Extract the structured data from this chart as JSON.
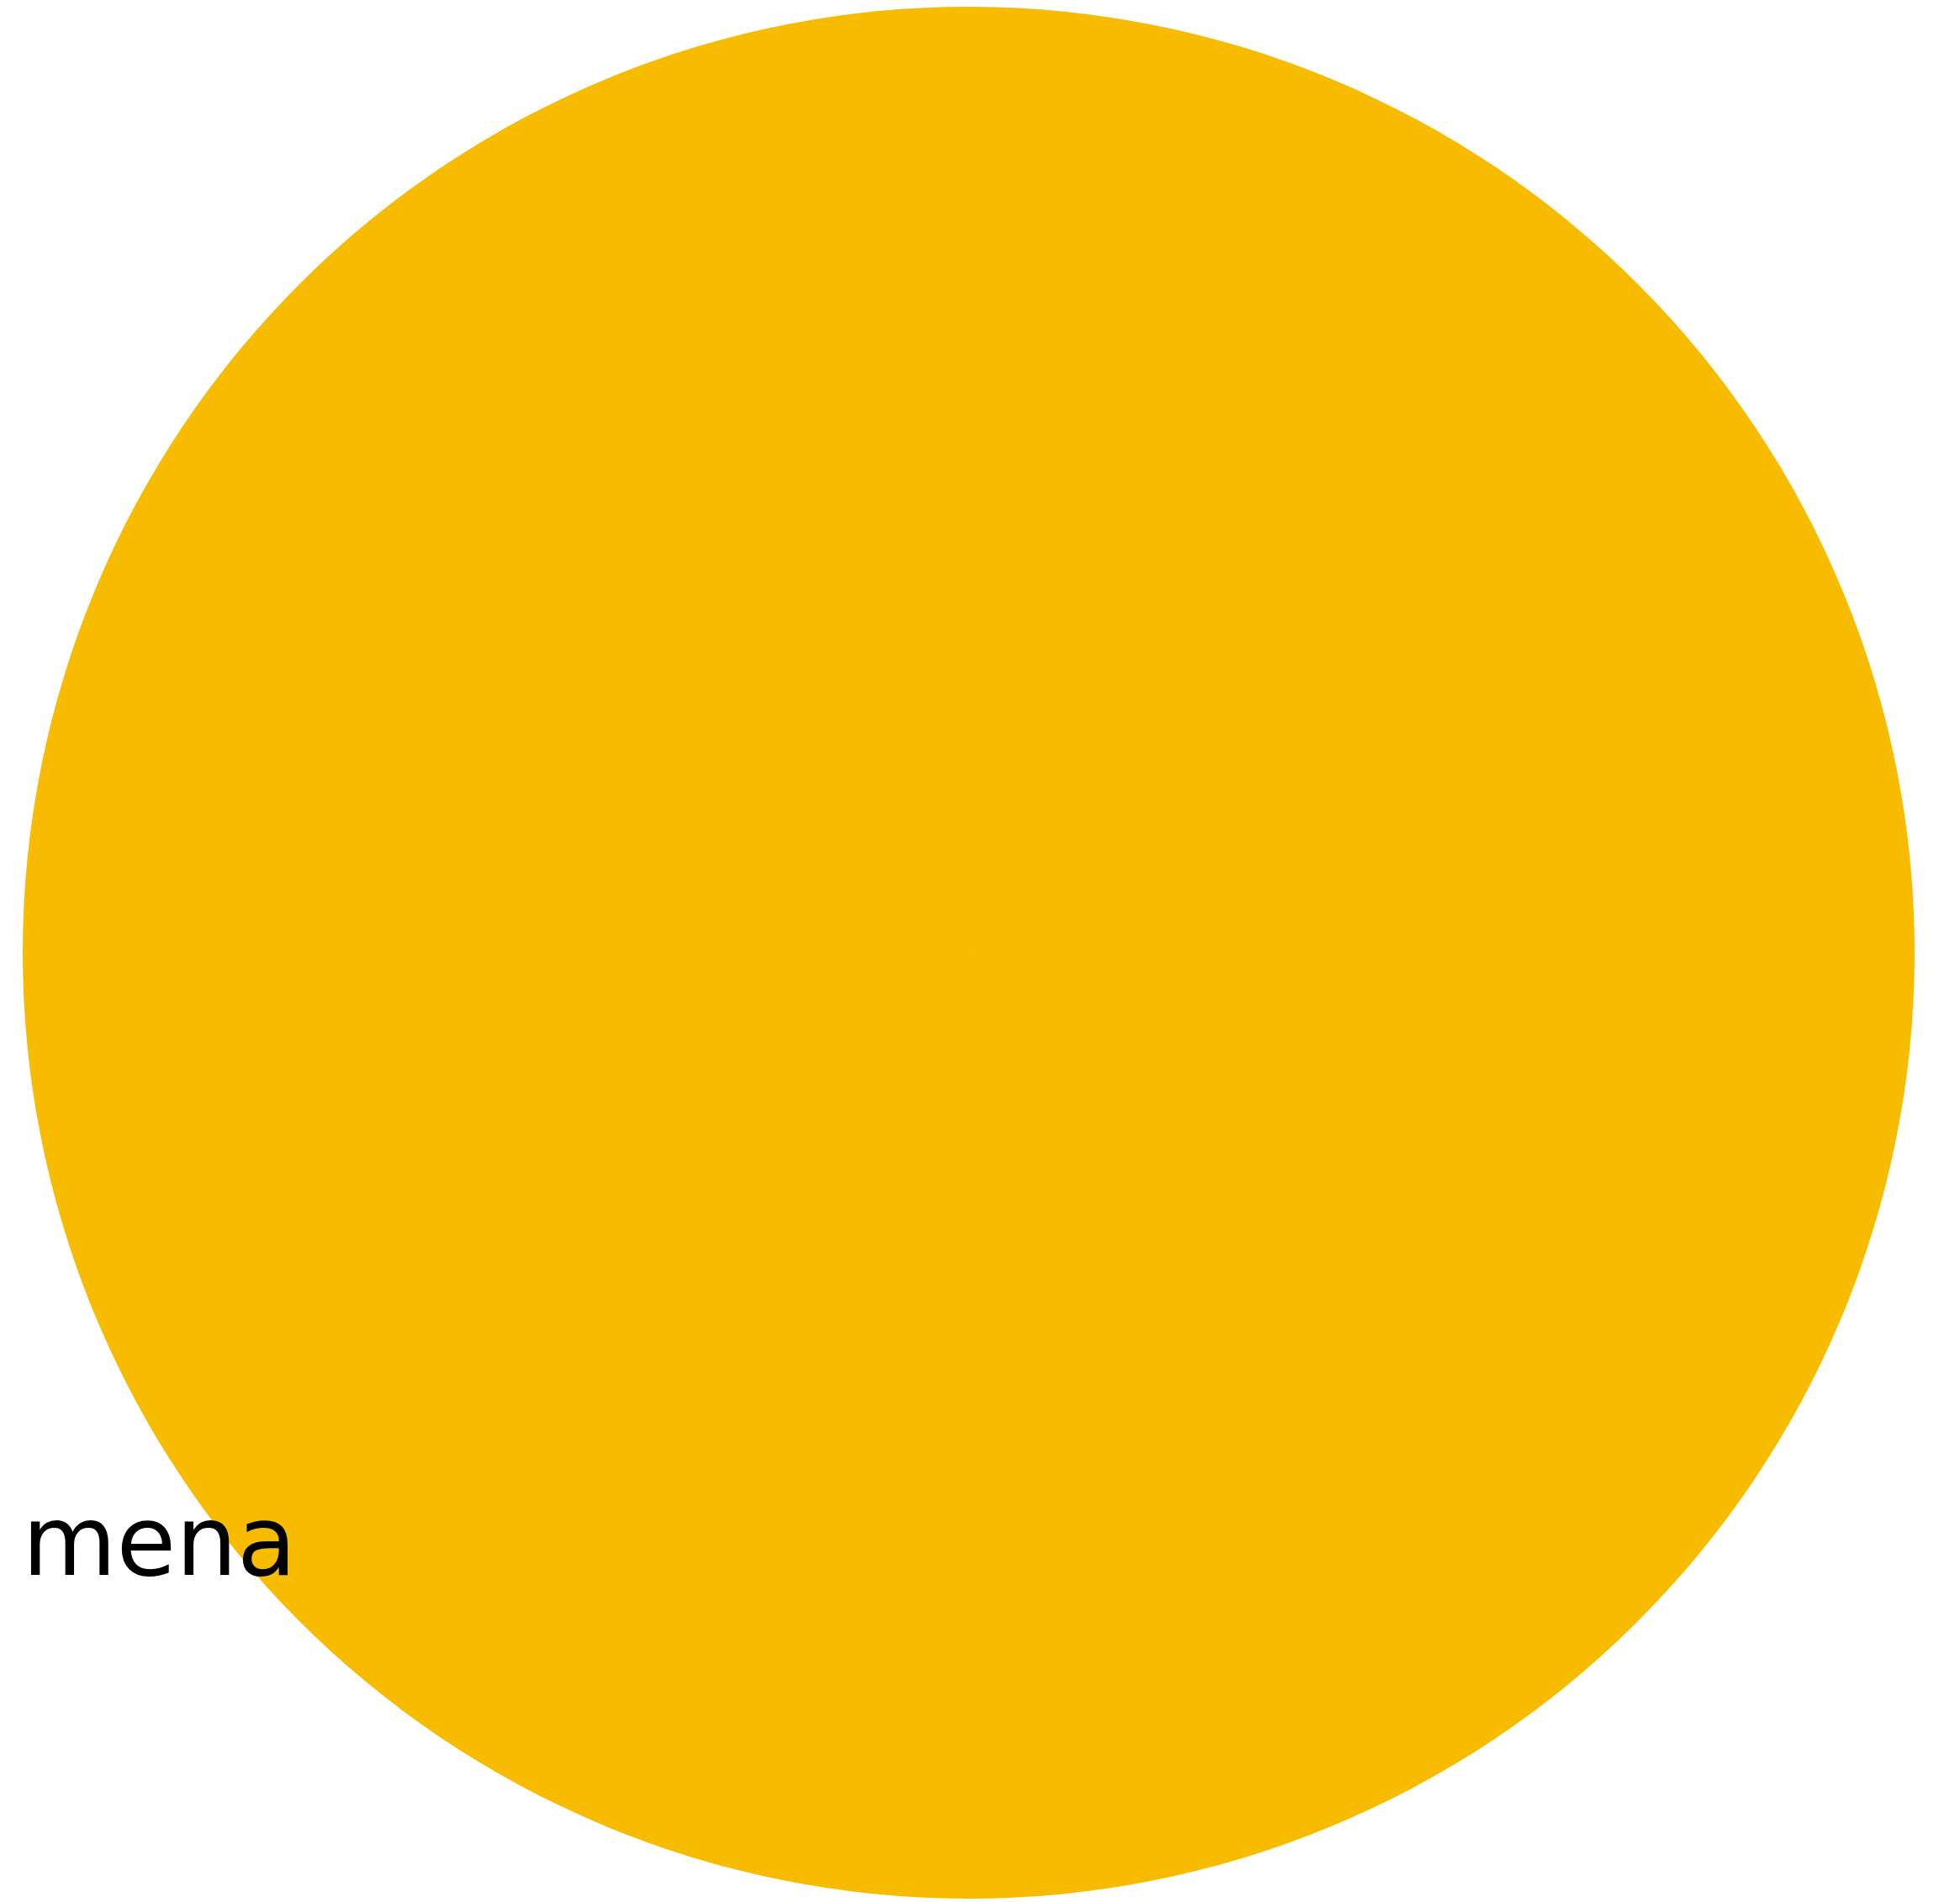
{
  "chart_data": {
    "type": "pie",
    "categories": [
      "mena"
    ],
    "values": [
      100
    ],
    "colors": [
      "#f7bb00"
    ],
    "legend": false
  }
}
